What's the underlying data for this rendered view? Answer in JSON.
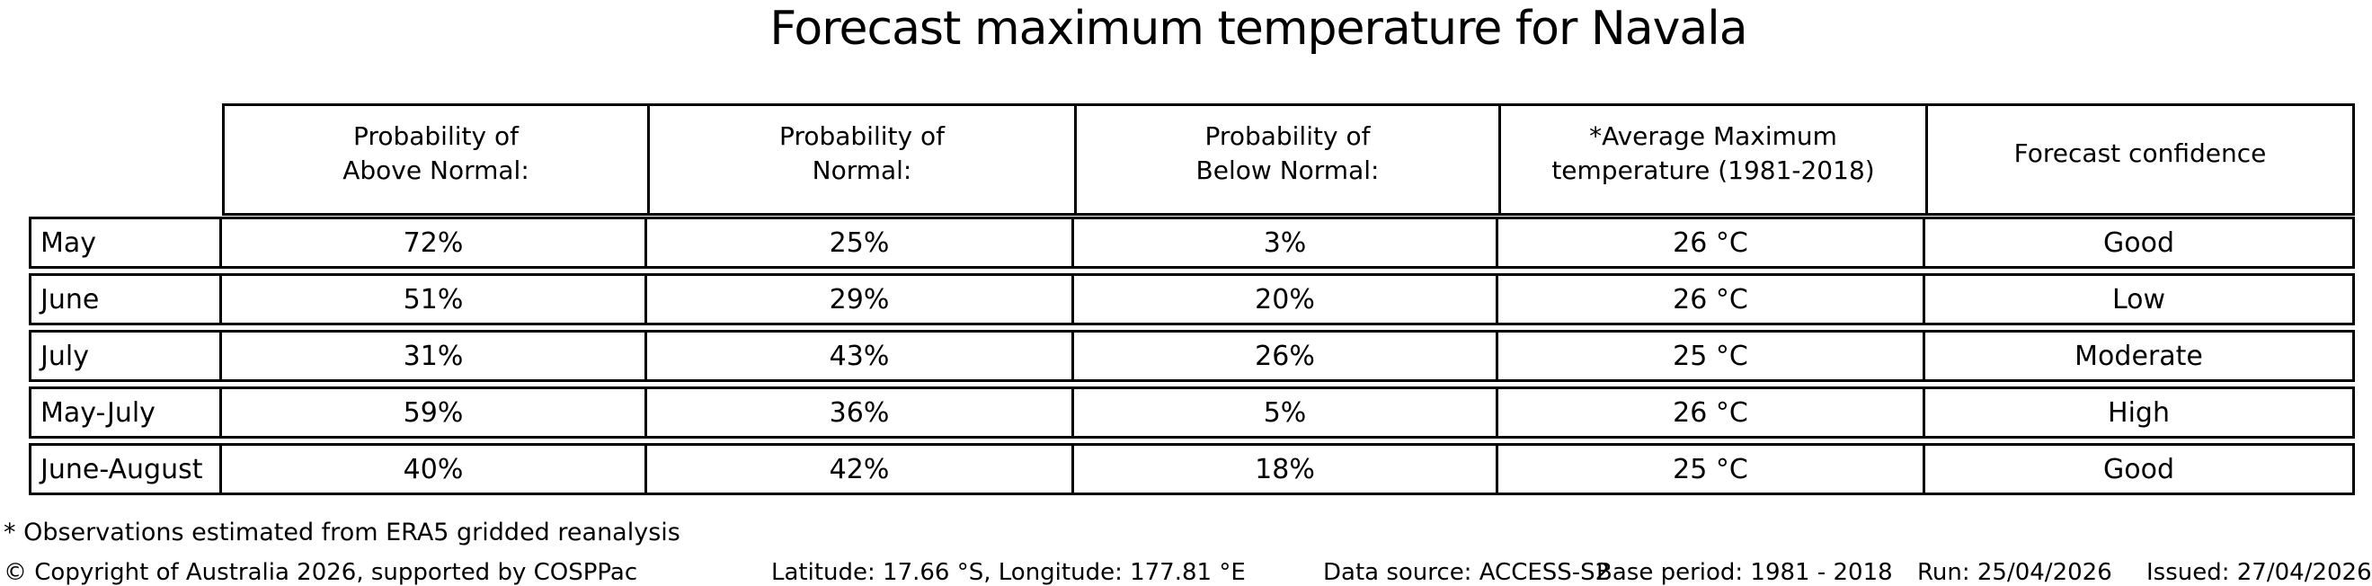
{
  "chart_data": {
    "type": "table",
    "title": "Forecast maximum temperature for Navala",
    "columns": [
      "Probability of\nAbove Normal:",
      "Probability of\nNormal:",
      "Probability of\nBelow Normal:",
      "*Average Maximum\ntemperature (1981-2018)",
      "Forecast confidence"
    ],
    "row_labels": [
      "May",
      "June",
      "July",
      "May-July",
      "June-August"
    ],
    "rows": [
      [
        "72%",
        "25%",
        "3%",
        "26 °C",
        "Good"
      ],
      [
        "51%",
        "29%",
        "20%",
        "26 °C",
        "Low"
      ],
      [
        "31%",
        "43%",
        "26%",
        "25 °C",
        "Moderate"
      ],
      [
        "59%",
        "36%",
        "5%",
        "26 °C",
        "High"
      ],
      [
        "40%",
        "42%",
        "18%",
        "25 °C",
        "Good"
      ]
    ],
    "footnote": "* Observations estimated from ERA5 gridded reanalysis"
  },
  "footer": {
    "copyright": "© Copyright of Australia 2026, supported by COSPPac",
    "location": "Latitude: 17.66 °S, Longitude: 177.81 °E",
    "data_source": "Data source: ACCESS-S2",
    "base_period": "Base period: 1981 - 2018",
    "run": "Run: 25/04/2026",
    "issued": "Issued: 27/04/2026"
  }
}
